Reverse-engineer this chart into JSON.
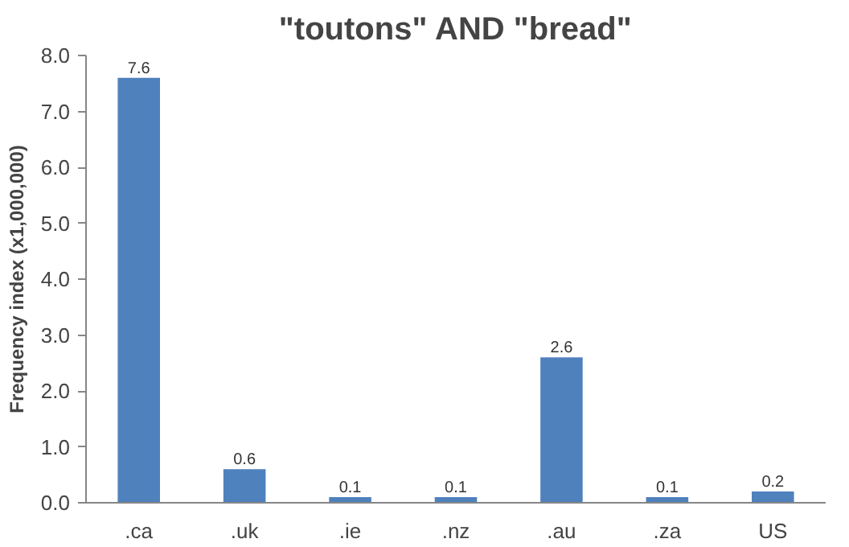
{
  "chart_data": {
    "type": "bar",
    "title": "\"toutons\" AND \"bread\"",
    "ylabel": "Frequency index (x1,000,000)",
    "categories": [
      ".ca",
      ".uk",
      ".ie",
      ".nz",
      ".au",
      ".za",
      "US"
    ],
    "values": [
      7.6,
      0.6,
      0.1,
      0.1,
      2.6,
      0.1,
      0.2
    ],
    "color": "#4f81bd",
    "data_labels": true,
    "grid": false,
    "ylim": [
      0,
      8
    ],
    "yticks": [
      {
        "value": 0,
        "label": "0.0"
      },
      {
        "value": 1,
        "label": "1.0"
      },
      {
        "value": 2,
        "label": "2.0"
      },
      {
        "value": 3,
        "label": "3.0"
      },
      {
        "value": 4,
        "label": "4.0"
      },
      {
        "value": 5,
        "label": "5.0"
      },
      {
        "value": 6,
        "label": "6.0"
      },
      {
        "value": 7,
        "label": "7.0"
      },
      {
        "value": 8,
        "label": "8.0"
      }
    ]
  }
}
